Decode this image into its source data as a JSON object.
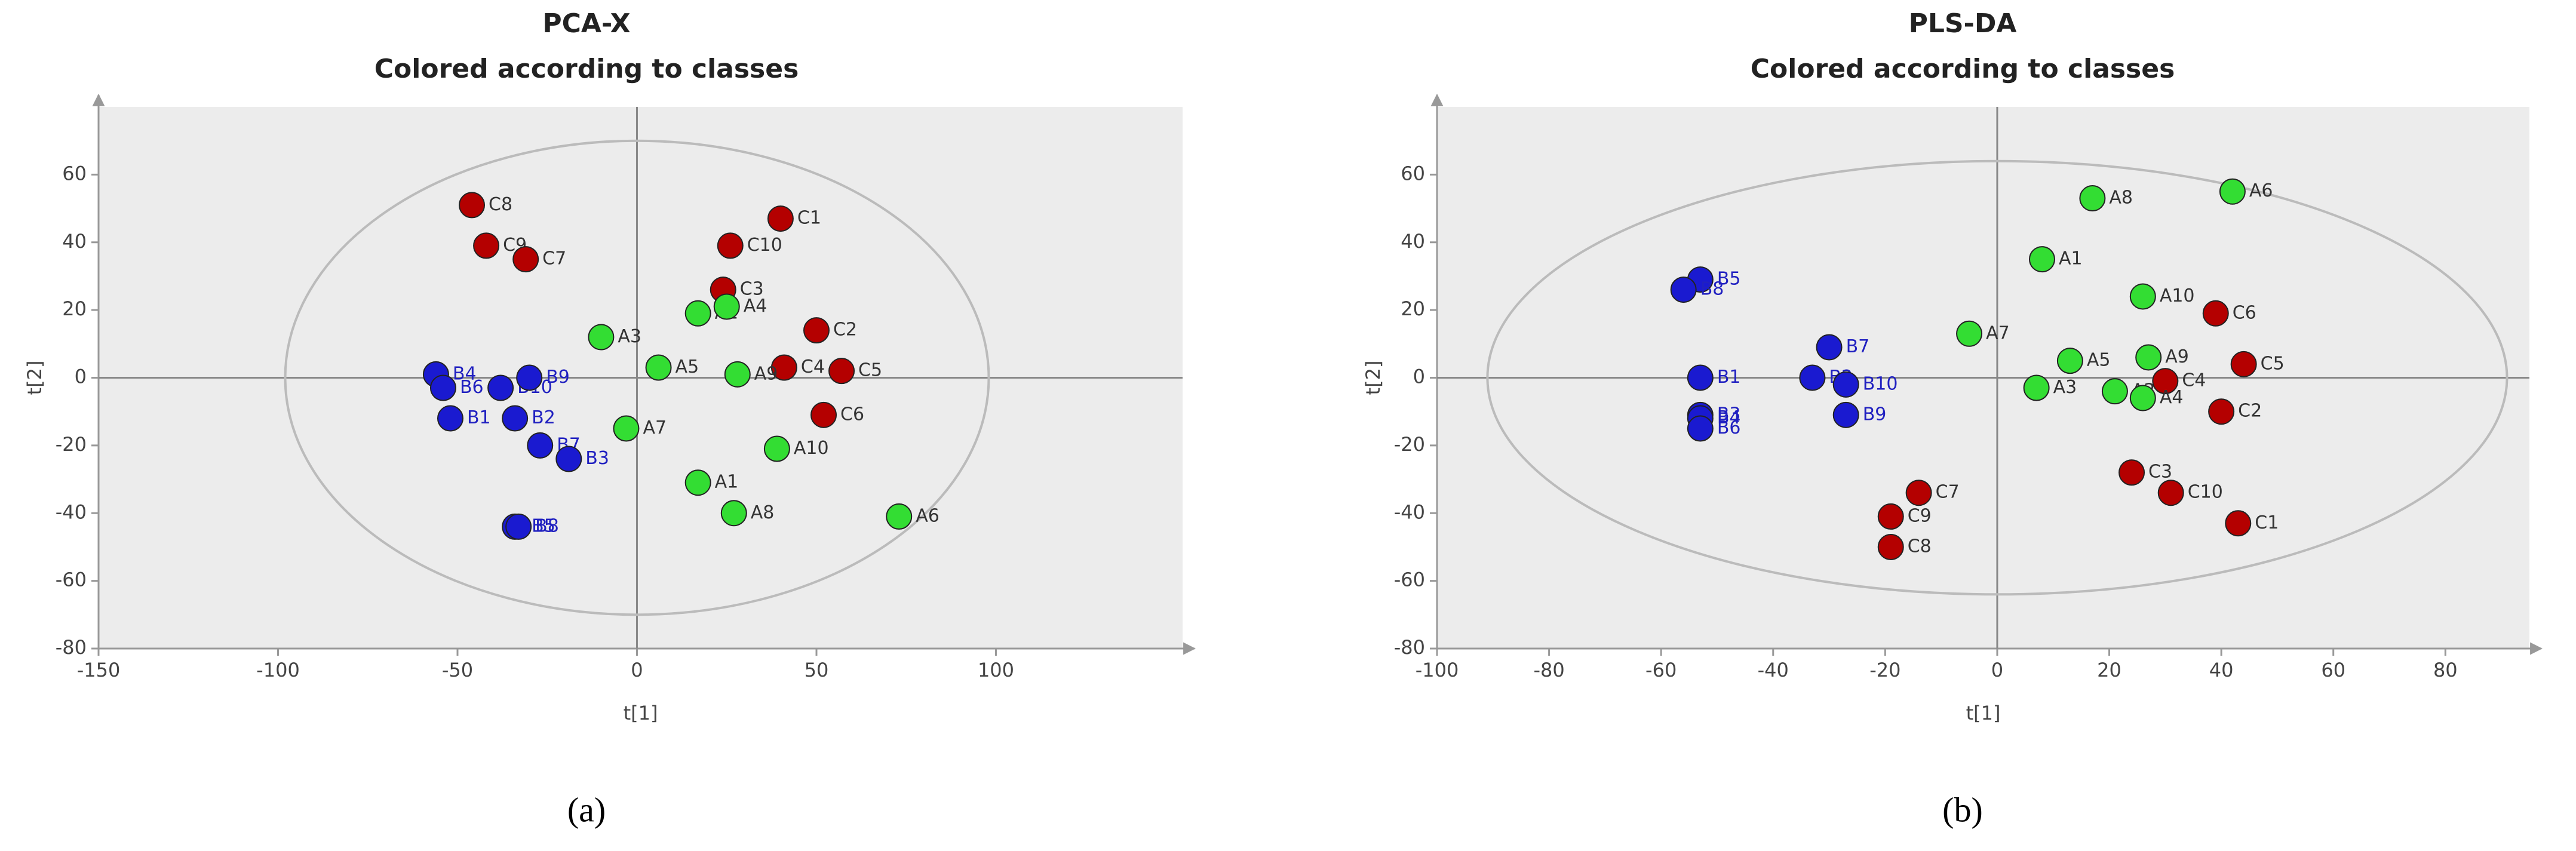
{
  "chart_data": [
    {
      "type": "scatter",
      "title": "PCA-X",
      "subtitle": "Colored according to classes",
      "xlabel": "t[1]",
      "ylabel": "t[2]",
      "caption": "(a)",
      "xlim": [
        -150,
        152
      ],
      "ylim": [
        -80,
        80
      ],
      "xticks": [
        -150,
        -100,
        -50,
        0,
        50,
        100
      ],
      "yticks": [
        -80,
        -60,
        -40,
        -20,
        0,
        20,
        40,
        60
      ],
      "ellipse": {
        "rx": 98,
        "ry": 70
      },
      "grid": false,
      "series": [
        {
          "color": "#b40000",
          "labels": [
            "C8",
            "C9",
            "C7",
            "C10",
            "C1",
            "C3",
            "C2",
            "C4",
            "C5",
            "C6"
          ],
          "x": [
            -46,
            -42,
            -31,
            26,
            40,
            24,
            50,
            41,
            57,
            52
          ],
          "y": [
            51,
            39,
            35,
            39,
            47,
            26,
            14,
            3,
            2,
            -11
          ]
        },
        {
          "color": "#33dd33",
          "labels": [
            "A3",
            "A2",
            "A4",
            "A5",
            "A9",
            "A7",
            "A10",
            "A1",
            "A8",
            "A6"
          ],
          "x": [
            -10,
            17,
            25,
            6,
            28,
            -3,
            39,
            17,
            27,
            73
          ],
          "y": [
            12,
            19,
            21,
            3,
            1,
            -15,
            -21,
            -31,
            -40,
            -41
          ]
        },
        {
          "color": "#1a1ad0",
          "labels": [
            "B4",
            "B6",
            "B1",
            "B10",
            "B9",
            "B2",
            "B7",
            "B3",
            "B5",
            "B8"
          ],
          "x": [
            -56,
            -54,
            -52,
            -38,
            -30,
            -34,
            -27,
            -19,
            -34,
            -33
          ],
          "y": [
            1,
            -3,
            -12,
            -3,
            0,
            -12,
            -20,
            -24,
            -44,
            -44
          ]
        }
      ]
    },
    {
      "type": "scatter",
      "title": "PLS-DA",
      "subtitle": "Colored according to classes",
      "xlabel": "t[1]",
      "ylabel": "t[2]",
      "caption": "(b)",
      "xlim": [
        -100,
        95
      ],
      "ylim": [
        -80,
        80
      ],
      "xticks": [
        -100,
        -80,
        -60,
        -40,
        -20,
        0,
        20,
        40,
        60,
        80
      ],
      "yticks": [
        -80,
        -60,
        -40,
        -20,
        0,
        20,
        40,
        60
      ],
      "ellipse": {
        "rx": 91,
        "ry": 64
      },
      "grid": false,
      "series": [
        {
          "color": "#b40000",
          "labels": [
            "C6",
            "C5",
            "C4",
            "C2",
            "C3",
            "C10",
            "C1",
            "C7",
            "C9",
            "C8"
          ],
          "x": [
            39,
            44,
            30,
            40,
            24,
            31,
            43,
            -14,
            -19,
            -19
          ],
          "y": [
            19,
            4,
            -1,
            -10,
            -28,
            -34,
            -43,
            -34,
            -41,
            -50
          ]
        },
        {
          "color": "#33dd33",
          "labels": [
            "A8",
            "A6",
            "A1",
            "A10",
            "A7",
            "A5",
            "A9",
            "A3",
            "A2",
            "A4"
          ],
          "x": [
            17,
            42,
            8,
            26,
            -5,
            13,
            27,
            7,
            21,
            26
          ],
          "y": [
            53,
            55,
            35,
            24,
            13,
            5,
            6,
            -3,
            -4,
            -6
          ]
        },
        {
          "color": "#1a1ad0",
          "labels": [
            "B5",
            "B8",
            "B1",
            "B3",
            "B4",
            "B6",
            "B7",
            "B2",
            "B10",
            "B9"
          ],
          "x": [
            -53,
            -56,
            -53,
            -53,
            -53,
            -53,
            -30,
            -33,
            -27,
            -27
          ],
          "y": [
            29,
            26,
            0,
            -11,
            -12,
            -15,
            9,
            0,
            -2,
            -11
          ]
        }
      ]
    }
  ]
}
